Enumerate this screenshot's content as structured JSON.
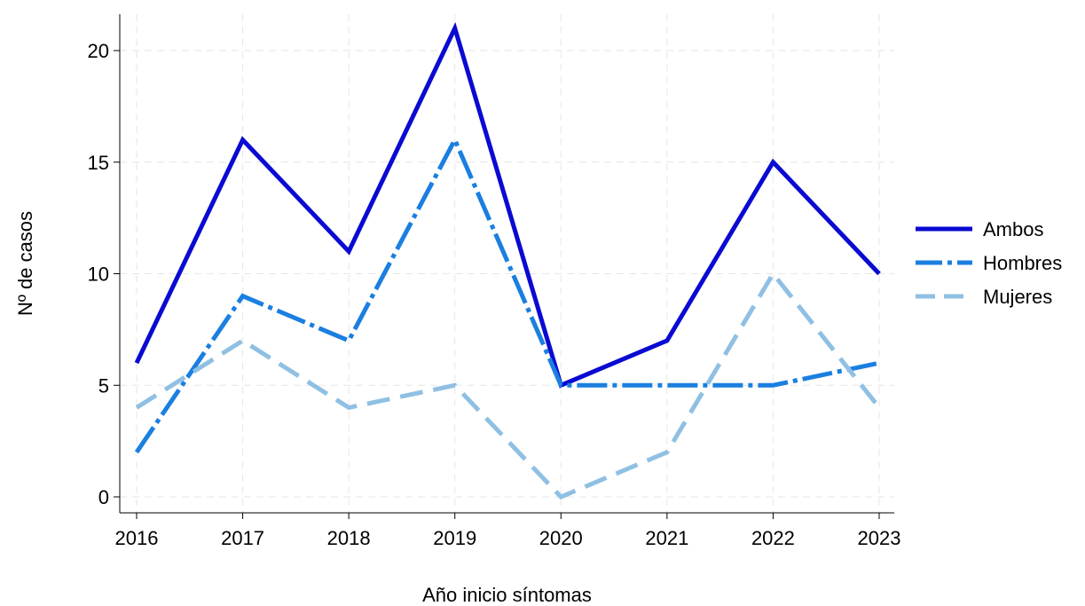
{
  "chart_data": {
    "type": "line",
    "title": "",
    "xlabel": "Año inicio síntomas",
    "ylabel": "Nº de casos",
    "x": [
      "2016",
      "2017",
      "2018",
      "2019",
      "2020",
      "2021",
      "2022",
      "2023"
    ],
    "yticks": [
      "0",
      "5",
      "10",
      "15",
      "20"
    ],
    "ylim": [
      0,
      21
    ],
    "grid": true,
    "legend_position": "right",
    "series": [
      {
        "name": "Ambos",
        "values": [
          6,
          16,
          11,
          21,
          5,
          7,
          15,
          10
        ],
        "color": "#0a0ad2",
        "style": "solid"
      },
      {
        "name": "Hombres",
        "values": [
          2,
          9,
          7,
          16,
          5,
          5,
          5,
          6
        ],
        "color": "#1a7fe0",
        "style": "dashdot"
      },
      {
        "name": "Mujeres",
        "values": [
          4,
          7,
          4,
          5,
          0,
          2,
          10,
          4
        ],
        "color": "#8fc0e3",
        "style": "dashed"
      }
    ]
  }
}
